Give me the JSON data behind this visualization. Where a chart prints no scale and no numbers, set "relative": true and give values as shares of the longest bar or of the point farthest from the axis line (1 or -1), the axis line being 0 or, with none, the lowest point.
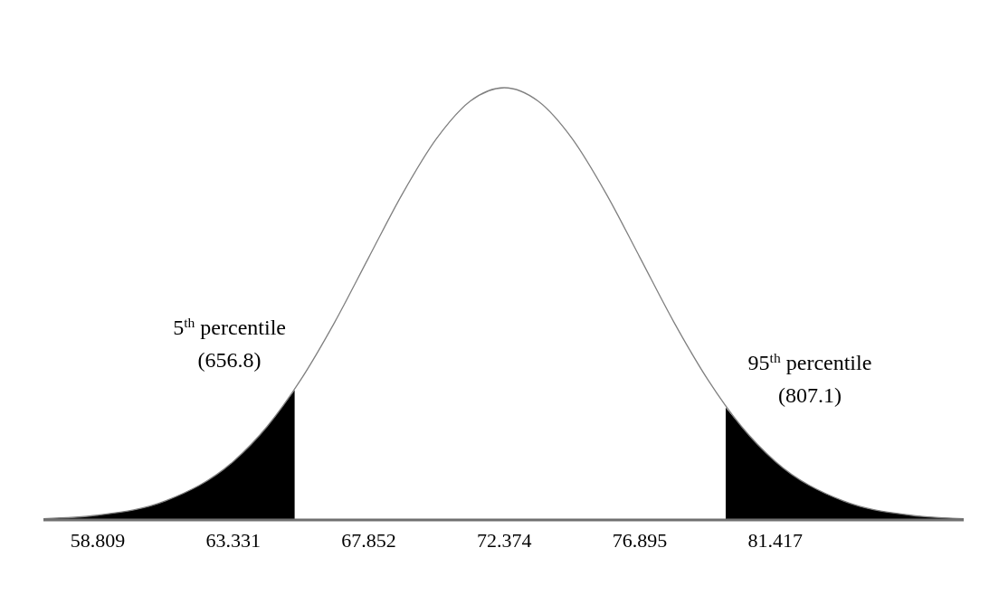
{
  "chart_data": {
    "type": "line",
    "relative": true,
    "tick_labels": "x",
    "grid": false,
    "xlim": [
      57.0,
      87.7
    ],
    "xticks": [
      58.809,
      63.331,
      67.852,
      72.374,
      76.895,
      81.417
    ],
    "series": [
      {
        "color": "#808080",
        "x": [
          57.0,
          58.81,
          61.07,
          63.33,
          64.46,
          65.59,
          66.72,
          67.85,
          68.98,
          70.11,
          71.24,
          72.37,
          73.5,
          74.64,
          75.77,
          76.9,
          78.03,
          79.16,
          80.29,
          81.42,
          83.68,
          85.93,
          87.7
        ],
        "values": [
          0.003,
          0.011,
          0.044,
          0.135,
          0.216,
          0.325,
          0.458,
          0.607,
          0.755,
          0.882,
          0.969,
          1,
          0.969,
          0.882,
          0.755,
          0.607,
          0.458,
          0.325,
          0.216,
          0.135,
          0.044,
          0.011,
          0.003
        ]
      },
      {
        "type": "area",
        "color": "#000000",
        "x": [
          57.0,
          58.81,
          61.07,
          63.33,
          64.46,
          65.38
        ],
        "values": [
          0.003,
          0.011,
          0.044,
          0.135,
          0.216,
          0.3
        ]
      },
      {
        "type": "area",
        "color": "#000000",
        "x": [
          79.76,
          80.29,
          81.42,
          83.68,
          85.93,
          87.7
        ],
        "values": [
          0.26,
          0.216,
          0.135,
          0.044,
          0.011,
          0.003
        ]
      }
    ],
    "annotations": [
      {
        "text": "5$^{th}$ percentile\n(656.8)",
        "x": 65.38,
        "y": 0.3
      },
      {
        "text": "95$^{th}$ percentile\n(807.1)",
        "x": 79.76,
        "y": 0.26
      }
    ]
  }
}
